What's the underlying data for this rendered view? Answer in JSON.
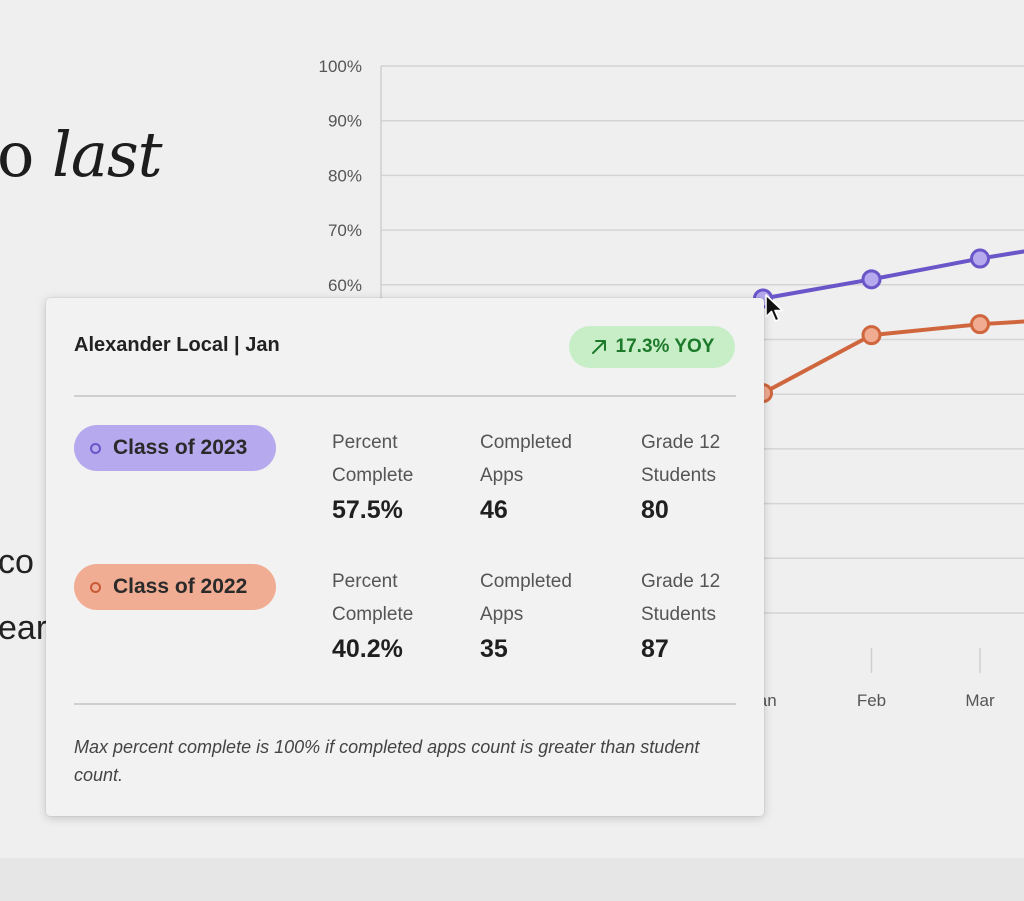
{
  "background_text": {
    "headline_prefix": "o ",
    "headline_emph": "last",
    "fragment_1": "co",
    "fragment_2": "ear"
  },
  "chart_data": {
    "type": "line",
    "y_ticks": [
      "100%",
      "90%",
      "80%",
      "70%",
      "60%"
    ],
    "x_ticks": [
      "Jan",
      "Feb",
      "Mar"
    ],
    "ylim": [
      0,
      100
    ],
    "grid": true,
    "series": [
      {
        "name": "Class of 2023",
        "color": "#6a55c9",
        "fill": "#b7a9ee",
        "values": [
          57.5,
          61.0,
          64.8,
          68.0
        ]
      },
      {
        "name": "Class of 2022",
        "color": "#d0663e",
        "fill": "#f0ab90",
        "values": [
          40.2,
          50.8,
          52.8,
          54.0
        ]
      }
    ]
  },
  "tooltip": {
    "title": "Alexander Local | Jan",
    "yoy": {
      "text": "17.3% YOY",
      "icon": "arrow-up-right-icon",
      "color": "#1c7a2a",
      "bg": "#c8eec8"
    },
    "rows": [
      {
        "label": "Class of 2023",
        "pill_bg": "#b7a9ee",
        "ring": "#6a55c9",
        "stats": [
          {
            "label_1": "Percent",
            "label_2": "Complete",
            "value": "57.5%"
          },
          {
            "label_1": "Completed",
            "label_2": "Apps",
            "value": "46"
          },
          {
            "label_1": "Grade 12",
            "label_2": "Students",
            "value": "80"
          }
        ]
      },
      {
        "label": "Class of 2022",
        "pill_bg": "#f1ad93",
        "ring": "#c95a35",
        "stats": [
          {
            "label_1": "Percent",
            "label_2": "Complete",
            "value": "40.2%"
          },
          {
            "label_1": "Completed",
            "label_2": "Apps",
            "value": "35"
          },
          {
            "label_1": "Grade 12",
            "label_2": "Students",
            "value": "87"
          }
        ]
      }
    ],
    "note": "Max percent complete is 100% if completed apps count is greater than student count."
  }
}
